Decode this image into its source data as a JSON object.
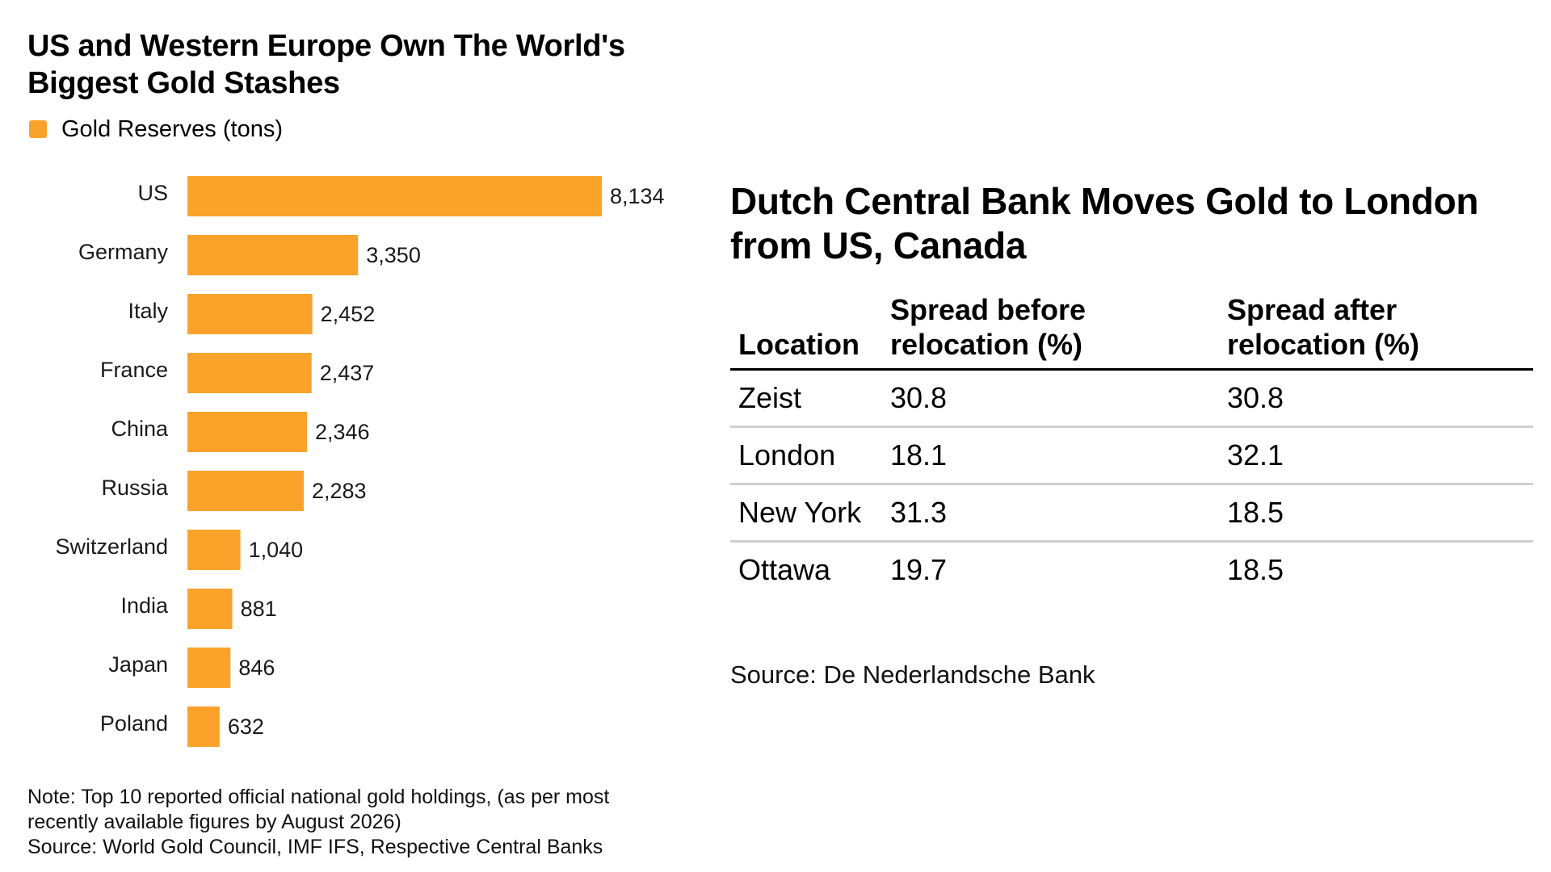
{
  "colors": {
    "bar": "#FBA22B",
    "text": "#1A1A1A",
    "rule_strong": "#000000",
    "rule_light": "#CFCFCF"
  },
  "chart_data": {
    "type": "bar",
    "orientation": "horizontal",
    "title": "US and Western Europe Own The World's Biggest Gold Stashes",
    "legend": [
      "Gold Reserves (tons)"
    ],
    "legend_placement": "top-left",
    "categories": [
      "US",
      "Germany",
      "Italy",
      "France",
      "China",
      "Russia",
      "Switzerland",
      "India",
      "Japan",
      "Poland"
    ],
    "series": [
      {
        "name": "Gold Reserves (tons)",
        "values": [
          8134,
          3350,
          2452,
          2437,
          2346,
          2283,
          1040,
          881,
          846,
          632
        ]
      }
    ],
    "value_labels": [
      "8,134",
      "3,350",
      "2,452",
      "2,437",
      "2,346",
      "2,283",
      "1,040",
      "881",
      "846",
      "632"
    ],
    "grid": false,
    "xlim": [
      0,
      8134
    ]
  },
  "left_footer": {
    "note_line1": "Note: Top 10 reported official national gold holdings, (as per most",
    "note_line2": "recently available figures by August 2026)",
    "source": "Source: World Gold Council, IMF IFS, Respective Central Banks"
  },
  "table": {
    "title": "Dutch Central Bank Moves Gold to London from US, Canada",
    "headers": [
      "Location",
      "Spread before relocation (%)",
      "Spread after relocation (%)"
    ],
    "rows": [
      [
        "Zeist",
        "30.8",
        "30.8"
      ],
      [
        "London",
        "18.1",
        "32.1"
      ],
      [
        "New York",
        "31.3",
        "18.5"
      ],
      [
        "Ottawa",
        "19.7",
        "18.5"
      ]
    ],
    "source": "Source: De Nederlandsche Bank"
  }
}
